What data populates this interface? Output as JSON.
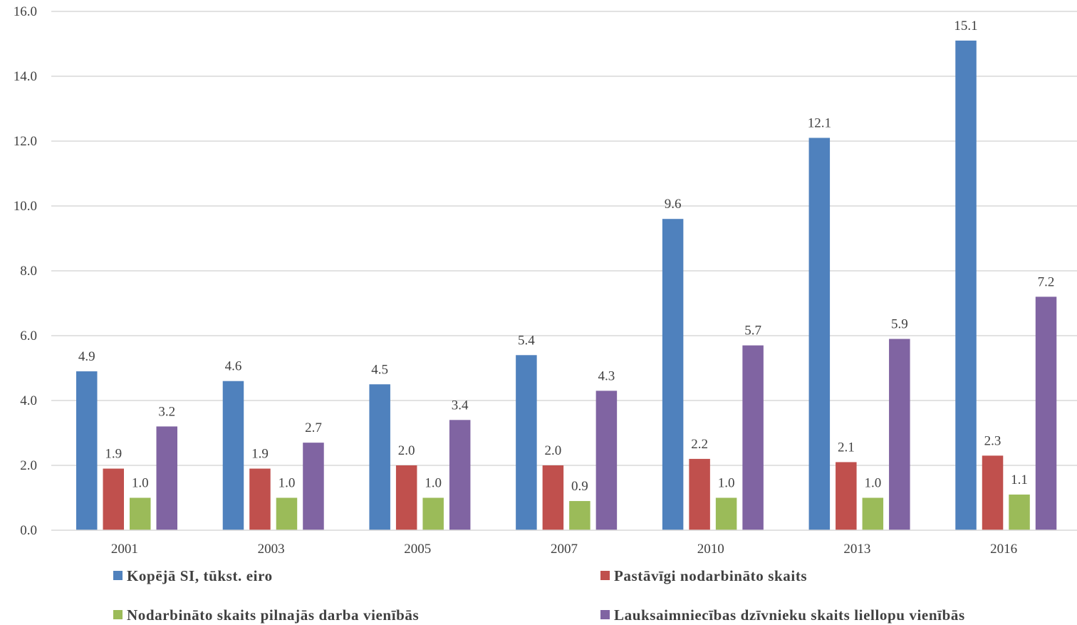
{
  "chart_data": {
    "type": "bar",
    "title": "",
    "xlabel": "",
    "ylabel": "",
    "ylim": [
      0,
      16
    ],
    "yticks": [
      "0.0",
      "2.0",
      "4.0",
      "6.0",
      "8.0",
      "10.0",
      "12.0",
      "14.0",
      "16.0"
    ],
    "grid": true,
    "legend_position": "bottom",
    "categories": [
      "2001",
      "2003",
      "2005",
      "2007",
      "2010",
      "2013",
      "2016"
    ],
    "series": [
      {
        "name": "Kopējā SI, tūkst. eiro",
        "color": "#4F81BD",
        "values": [
          4.9,
          4.6,
          4.5,
          5.4,
          9.6,
          12.1,
          15.1
        ],
        "labels": [
          "4.9",
          "4.6",
          "4.5",
          "5.4",
          "9.6",
          "12.1",
          "15.1"
        ]
      },
      {
        "name": "Pastāvīgi nodarbināto skaits",
        "color": "#C0504D",
        "values": [
          1.9,
          1.9,
          2.0,
          2.0,
          2.2,
          2.1,
          2.3
        ],
        "labels": [
          "1.9",
          "1.9",
          "2.0",
          "2.0",
          "2.2",
          "2.1",
          "2.3"
        ]
      },
      {
        "name": "Nodarbināto skaits pilnajās darba vienībās",
        "color": "#9BBB59",
        "values": [
          1.0,
          1.0,
          1.0,
          0.9,
          1.0,
          1.0,
          1.1
        ],
        "labels": [
          "1.0",
          "1.0",
          "1.0",
          "0.9",
          "1.0",
          "1.0",
          "1.1"
        ]
      },
      {
        "name": "Lauksaimniecības dzīvnieku skaits liellopu vienībās",
        "color": "#8064A2",
        "values": [
          3.2,
          2.7,
          3.4,
          4.3,
          5.7,
          5.9,
          7.2
        ],
        "labels": [
          "3.2",
          "2.7",
          "3.4",
          "4.3",
          "5.7",
          "5.9",
          "7.2"
        ]
      }
    ]
  }
}
